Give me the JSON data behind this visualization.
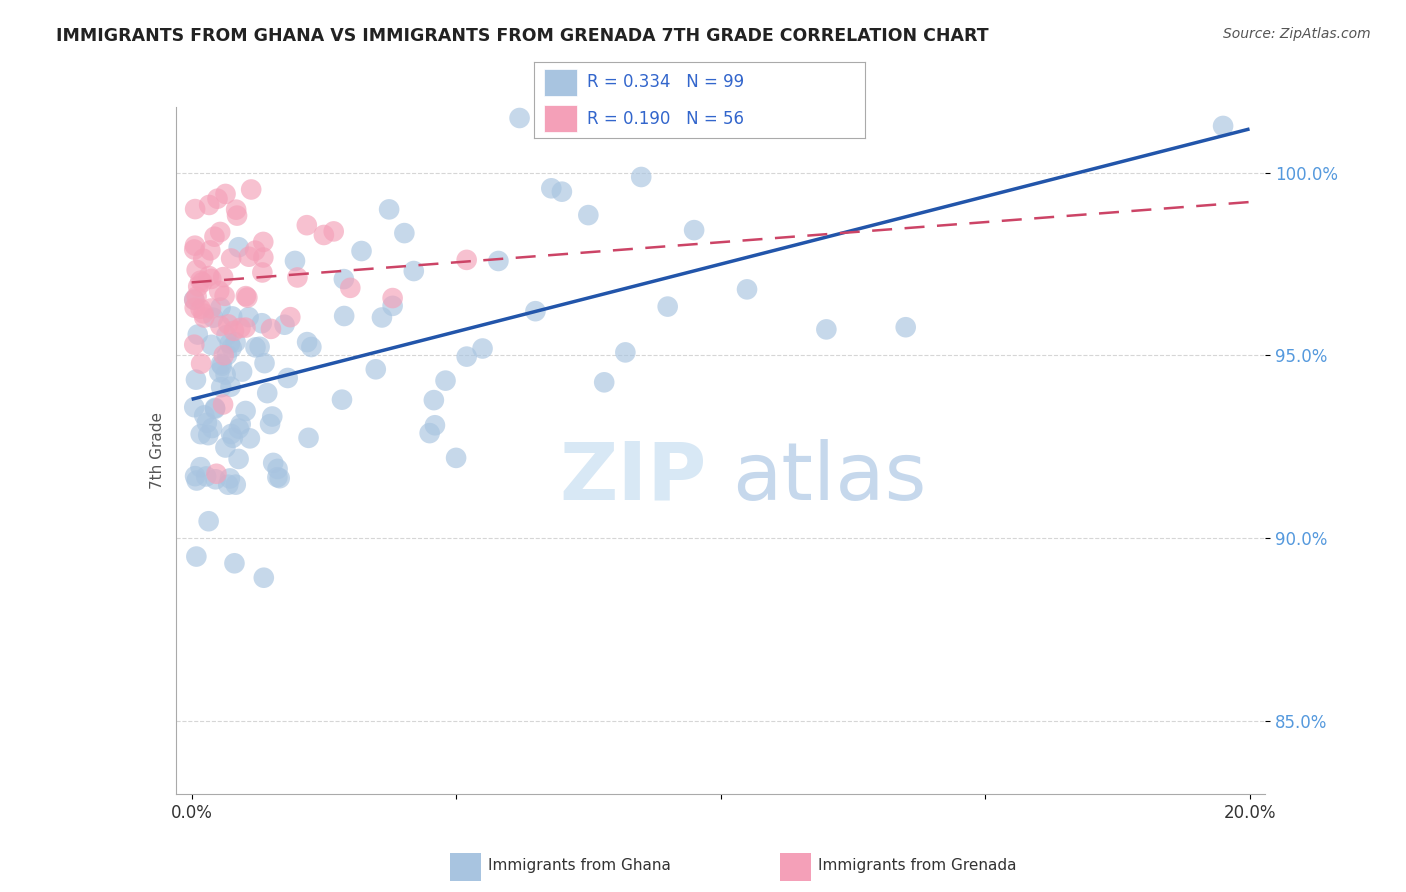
{
  "title": "IMMIGRANTS FROM GHANA VS IMMIGRANTS FROM GRENADA 7TH GRADE CORRELATION CHART",
  "source": "Source: ZipAtlas.com",
  "ylabel": "7th Grade",
  "xlim": [
    -0.3,
    20.3
  ],
  "ylim": [
    83.0,
    101.8
  ],
  "x_ticks": [
    0.0,
    5.0,
    10.0,
    15.0,
    20.0
  ],
  "x_tick_labels": [
    "0.0%",
    "",
    "",
    "",
    "20.0%"
  ],
  "y_ticks": [
    85.0,
    90.0,
    95.0,
    100.0
  ],
  "y_tick_labels": [
    "85.0%",
    "90.0%",
    "95.0%",
    "100.0%"
  ],
  "ghana_color": "#a8c4e0",
  "grenada_color": "#f4a0b8",
  "ghana_line_color": "#2255aa",
  "grenada_line_color": "#cc4466",
  "ghana_R": 0.334,
  "ghana_N": 99,
  "grenada_R": 0.19,
  "grenada_N": 56,
  "background_color": "#ffffff",
  "ghana_line_x0": 0.0,
  "ghana_line_x1": 20.0,
  "ghana_line_y0": 93.8,
  "ghana_line_y1": 101.2,
  "grenada_line_x0": 0.0,
  "grenada_line_x1": 20.0,
  "grenada_line_y0": 97.0,
  "grenada_line_y1": 99.2
}
